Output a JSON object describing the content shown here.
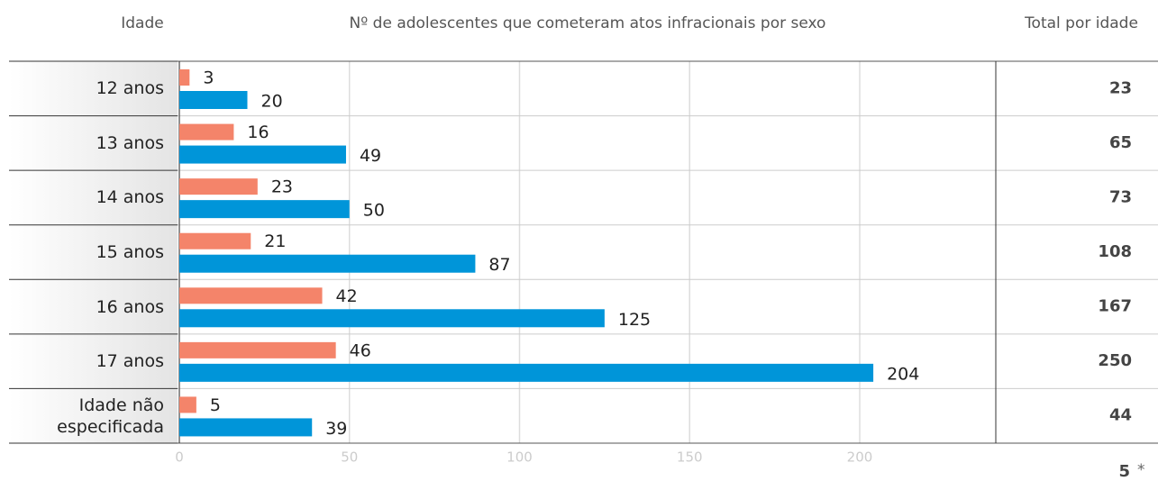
{
  "chart_data": {
    "type": "bar",
    "orientation": "horizontal",
    "title": "Nº de adolescentes que cometeram atos infracionais por sexo",
    "category_header": "Idade",
    "total_header": "Total por idade",
    "categories": [
      "12 anos",
      "13 anos",
      "14 anos",
      "15 anos",
      "16 anos",
      "17 anos",
      "Idade não especificada"
    ],
    "series": [
      {
        "color": "#f4846a",
        "values": [
          3,
          16,
          23,
          21,
          42,
          46,
          5
        ]
      },
      {
        "color": "#0095d9",
        "values": [
          20,
          49,
          50,
          87,
          125,
          204,
          39
        ]
      }
    ],
    "totals": [
      23,
      65,
      73,
      108,
      167,
      250,
      44
    ],
    "xlim": [
      0,
      240
    ],
    "xticks": [
      0,
      50,
      100,
      150,
      200
    ],
    "grid": true,
    "footnote_value": 5,
    "footnote_mark": "*"
  }
}
